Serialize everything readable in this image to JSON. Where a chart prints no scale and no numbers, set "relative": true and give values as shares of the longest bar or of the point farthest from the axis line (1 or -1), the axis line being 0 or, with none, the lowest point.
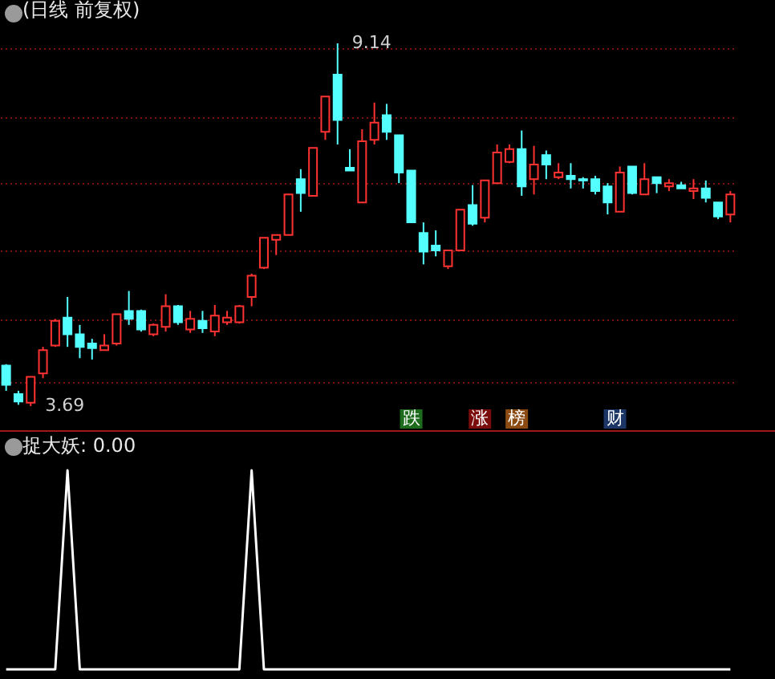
{
  "chart_data": [
    {
      "type": "candlestick",
      "title": "(日线 前复权)",
      "categories": [
        null,
        null,
        null,
        null,
        null,
        null,
        null,
        null,
        null,
        null,
        null,
        null,
        null,
        null,
        null,
        null,
        null,
        null,
        null,
        null,
        null,
        null,
        null,
        null,
        null,
        null,
        null,
        null,
        null,
        null,
        null,
        null,
        null,
        null,
        null,
        null,
        null,
        null,
        null,
        null,
        null,
        null,
        null,
        null,
        null,
        null,
        null,
        null,
        null,
        null,
        null,
        null,
        null,
        null,
        null,
        null,
        null,
        null,
        null,
        null
      ],
      "ohlc": [
        [
          4.3,
          4.32,
          3.92,
          4.01
        ],
        [
          3.87,
          3.92,
          3.71,
          3.76
        ],
        [
          3.74,
          4.13,
          3.69,
          4.13
        ],
        [
          4.18,
          4.58,
          4.11,
          4.53
        ],
        [
          4.6,
          5.0,
          4.58,
          4.97
        ],
        [
          5.02,
          5.33,
          4.58,
          4.77
        ],
        [
          4.77,
          4.91,
          4.41,
          4.58
        ],
        [
          4.63,
          4.7,
          4.39,
          4.56
        ],
        [
          4.53,
          4.77,
          4.53,
          4.6
        ],
        [
          4.63,
          5.07,
          4.6,
          5.07
        ],
        [
          5.12,
          5.42,
          4.91,
          5.0
        ],
        [
          5.12,
          5.14,
          4.81,
          4.84
        ],
        [
          4.77,
          4.93,
          4.74,
          4.91
        ],
        [
          4.88,
          5.37,
          4.81,
          5.19
        ],
        [
          5.19,
          5.21,
          4.91,
          4.95
        ],
        [
          4.84,
          5.12,
          4.79,
          5.0
        ],
        [
          4.97,
          5.12,
          4.79,
          4.86
        ],
        [
          4.81,
          5.21,
          4.74,
          5.05
        ],
        [
          4.95,
          5.12,
          4.91,
          5.02
        ],
        [
          4.95,
          5.21,
          4.93,
          5.19
        ],
        [
          5.33,
          5.68,
          5.19,
          5.65
        ],
        [
          5.77,
          6.22,
          5.75,
          6.22
        ],
        [
          6.19,
          6.26,
          5.96,
          6.26
        ],
        [
          6.26,
          6.87,
          6.26,
          6.87
        ],
        [
          7.1,
          7.25,
          6.61,
          6.89
        ],
        [
          6.85,
          7.57,
          6.85,
          7.57
        ],
        [
          7.81,
          8.34,
          7.69,
          8.34
        ],
        [
          8.67,
          9.14,
          7.62,
          7.99
        ],
        [
          7.27,
          7.55,
          7.23,
          7.23
        ],
        [
          6.75,
          7.85,
          6.75,
          7.67
        ],
        [
          7.69,
          8.25,
          7.62,
          7.95
        ],
        [
          8.06,
          8.23,
          7.69,
          7.81
        ],
        [
          7.76,
          7.76,
          7.04,
          7.2
        ],
        [
          7.23,
          7.23,
          6.45,
          6.45
        ],
        [
          6.29,
          6.45,
          5.82,
          6.01
        ],
        [
          6.1,
          6.33,
          5.94,
          6.03
        ],
        [
          5.79,
          6.03,
          5.75,
          6.03
        ],
        [
          6.03,
          6.64,
          6.03,
          6.64
        ],
        [
          6.71,
          7.01,
          6.4,
          6.43
        ],
        [
          6.52,
          7.08,
          6.45,
          7.08
        ],
        [
          7.04,
          7.62,
          7.04,
          7.5
        ],
        [
          7.36,
          7.62,
          7.34,
          7.55
        ],
        [
          7.55,
          7.83,
          6.85,
          6.99
        ],
        [
          7.1,
          7.6,
          6.87,
          7.32
        ],
        [
          7.46,
          7.53,
          7.1,
          7.32
        ],
        [
          7.13,
          7.34,
          7.1,
          7.2
        ],
        [
          7.15,
          7.34,
          6.96,
          7.1
        ],
        [
          7.1,
          7.13,
          6.96,
          7.08
        ],
        [
          7.1,
          7.15,
          6.87,
          6.92
        ],
        [
          6.99,
          7.04,
          6.57,
          6.75
        ],
        [
          6.61,
          7.29,
          6.61,
          7.2
        ],
        [
          7.29,
          7.29,
          6.87,
          6.89
        ],
        [
          6.87,
          7.34,
          6.87,
          7.1
        ],
        [
          7.13,
          7.13,
          6.89,
          7.04
        ],
        [
          6.99,
          7.1,
          6.92,
          7.04
        ],
        [
          7.01,
          7.06,
          6.96,
          6.96
        ],
        [
          6.92,
          7.1,
          6.8,
          6.96
        ],
        [
          6.96,
          7.08,
          6.75,
          6.82
        ],
        [
          6.75,
          6.75,
          6.5,
          6.54
        ],
        [
          6.57,
          6.92,
          6.45,
          6.87
        ]
      ],
      "colors": [
        "#54ffff",
        "#54ffff",
        "#ff3232",
        "#ff3232",
        "#ff3232",
        "#54ffff",
        "#54ffff",
        "#54ffff",
        "#ff3232",
        "#ff3232",
        "#54ffff",
        "#54ffff",
        "#ff3232",
        "#ff3232",
        "#54ffff",
        "#ff3232",
        "#54ffff",
        "#ff3232",
        "#ff3232",
        "#ff3232",
        "#ff3232",
        "#ff3232",
        "#ff3232",
        "#ff3232",
        "#54ffff",
        "#ff3232",
        "#ff3232",
        "#54ffff",
        "#54ffff",
        "#ff3232",
        "#ff3232",
        "#54ffff",
        "#54ffff",
        "#54ffff",
        "#54ffff",
        "#54ffff",
        "#ff3232",
        "#ff3232",
        "#54ffff",
        "#ff3232",
        "#ff3232",
        "#ff3232",
        "#54ffff",
        "#ff3232",
        "#54ffff",
        "#ff3232",
        "#54ffff",
        "#54ffff",
        "#54ffff",
        "#54ffff",
        "#ff3232",
        "#54ffff",
        "#ff3232",
        "#54ffff",
        "#ff3232",
        "#54ffff",
        "#ff3232",
        "#54ffff",
        "#54ffff",
        "#ff3232"
      ],
      "yticks": [
        {
          "value": 9.07,
          "label": null
        },
        {
          "value": 8.04,
          "label": null
        },
        {
          "value": 7.04,
          "label": null
        },
        {
          "value": 6.03,
          "label": null
        },
        {
          "value": 5.0,
          "label": null
        },
        {
          "value": 4.04,
          "label": null
        }
      ],
      "grid": true,
      "tick_labels": false,
      "annotations": [
        "9.14",
        "3.69",
        "跌",
        "涨",
        "榜",
        "财"
      ]
    },
    {
      "type": "line",
      "title": "捉大妖: 0.00",
      "relative": true,
      "tick_labels": false,
      "categories": [
        null,
        null,
        null,
        null,
        null,
        null,
        null,
        null,
        null,
        null,
        null,
        null,
        null,
        null,
        null,
        null,
        null,
        null,
        null,
        null,
        null,
        null,
        null,
        null,
        null,
        null,
        null,
        null,
        null,
        null,
        null,
        null,
        null,
        null,
        null,
        null,
        null,
        null,
        null,
        null,
        null,
        null,
        null,
        null,
        null,
        null,
        null,
        null,
        null,
        null,
        null,
        null,
        null,
        null,
        null,
        null,
        null,
        null,
        null,
        null
      ],
      "series": [
        {
          "color": "#ffffff",
          "values": [
            0,
            0,
            0,
            0,
            0,
            1,
            0,
            0,
            0,
            0,
            0,
            0,
            0,
            0,
            0,
            0,
            0,
            0,
            0,
            0,
            1,
            0,
            0,
            0,
            0,
            0,
            0,
            0,
            0,
            0,
            0,
            0,
            0,
            0,
            0,
            0,
            0,
            0,
            0,
            0,
            0,
            0,
            0,
            0,
            0,
            0,
            0,
            0,
            0,
            0,
            0,
            0,
            0,
            0,
            0,
            0,
            0,
            0,
            0,
            0
          ]
        }
      ]
    }
  ]
}
